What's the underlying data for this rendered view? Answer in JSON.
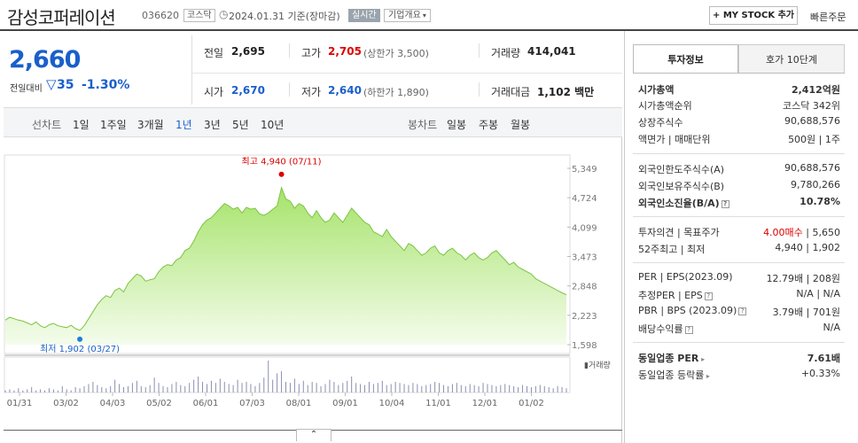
{
  "header": {
    "title": "감성코퍼레이션",
    "code": "036620",
    "market": "코스닥",
    "date": "2024.01.31  기준(장마감)",
    "realtime": "실시간",
    "overview": "기업개요",
    "mystock": "+ MY STOCK 추가",
    "quick_order": "빠른주문"
  },
  "price": {
    "current": "2,660",
    "change_label": "전일대비",
    "change_value": "35",
    "change_rate": "-1.30%"
  },
  "quote": {
    "prev_close_label": "전일",
    "prev_close": "2,695",
    "high_label": "고가",
    "high": "2,705",
    "upper_limit": "(상한가 3,500)",
    "volume_label": "거래량",
    "volume": "414,041",
    "open_label": "시가",
    "open": "2,670",
    "low_label": "저가",
    "low": "2,640",
    "lower_limit": "(하한가 1,890)",
    "amount_label": "거래대금",
    "amount": "1,102 백만"
  },
  "toolbar": {
    "line_chart": "선차트",
    "periods": [
      "1일",
      "1주일",
      "3개월",
      "1년",
      "3년",
      "5년",
      "10년"
    ],
    "selected_period": "1년",
    "candle_chart": "봉차트",
    "candle_periods": [
      "일봉",
      "주봉",
      "월봉"
    ]
  },
  "chart_data": {
    "type": "area",
    "title": "",
    "y_ticks": [
      "5,349",
      "4,724",
      "4,099",
      "3,473",
      "2,848",
      "2,223",
      "1,598"
    ],
    "ylim": [
      1598,
      5349
    ],
    "x_ticks": [
      "01/31",
      "03/02",
      "04/03",
      "05/02",
      "06/01",
      "07/03",
      "08/01",
      "09/01",
      "10/04",
      "11/01",
      "12/01",
      "01/02"
    ],
    "high_annotation": "최고 4,940 (07/11)",
    "low_annotation": "최저 1,902 (03/27)",
    "volume_label": "거래량",
    "values": [
      2120,
      2180,
      2150,
      2120,
      2100,
      2060,
      2020,
      2080,
      2000,
      1960,
      2020,
      2050,
      2000,
      1980,
      1960,
      2010,
      1940,
      1902,
      2000,
      2150,
      2300,
      2450,
      2560,
      2640,
      2600,
      2750,
      2800,
      2720,
      2900,
      3000,
      3100,
      3060,
      2950,
      2980,
      3000,
      3150,
      3250,
      3300,
      3280,
      3400,
      3450,
      3600,
      3650,
      3800,
      4000,
      4150,
      4250,
      4300,
      4400,
      4500,
      4600,
      4550,
      4480,
      4520,
      4400,
      4520,
      4480,
      4500,
      4380,
      4350,
      4400,
      4480,
      4550,
      4940,
      4700,
      4650,
      4500,
      4600,
      4550,
      4400,
      4300,
      4450,
      4300,
      4200,
      4250,
      4400,
      4300,
      4200,
      4350,
      4500,
      4400,
      4300,
      4200,
      4150,
      4000,
      3950,
      3900,
      4050,
      3900,
      3800,
      3700,
      3600,
      3750,
      3700,
      3600,
      3500,
      3550,
      3650,
      3700,
      3550,
      3500,
      3600,
      3650,
      3550,
      3500,
      3400,
      3500,
      3550,
      3450,
      3400,
      3450,
      3550,
      3600,
      3500,
      3400,
      3300,
      3350,
      3250,
      3200,
      3150,
      3100,
      3000,
      2950,
      2900,
      2850,
      2800,
      2750,
      2700,
      2660
    ],
    "volumes": [
      2,
      3,
      2,
      4,
      2,
      3,
      5,
      2,
      3,
      2,
      4,
      3,
      2,
      6,
      3,
      2,
      5,
      4,
      6,
      8,
      10,
      7,
      5,
      4,
      6,
      12,
      8,
      5,
      6,
      9,
      11,
      6,
      5,
      7,
      14,
      9,
      6,
      5,
      8,
      10,
      7,
      6,
      9,
      12,
      15,
      10,
      8,
      11,
      9,
      13,
      10,
      8,
      7,
      12,
      9,
      10,
      8,
      6,
      9,
      14,
      30,
      12,
      18,
      20,
      10,
      9,
      13,
      8,
      11,
      7,
      10,
      9,
      6,
      8,
      12,
      10,
      7,
      9,
      11,
      15,
      9,
      8,
      7,
      10,
      8,
      9,
      11,
      7,
      8,
      10,
      9,
      8,
      7,
      9,
      8,
      6,
      7,
      8,
      10,
      9,
      7,
      6,
      8,
      9,
      7,
      6,
      8,
      7,
      6,
      9,
      8,
      7,
      6,
      7,
      8,
      7,
      6,
      5,
      7,
      6,
      5,
      6,
      7,
      6,
      5,
      4,
      6,
      5,
      4
    ]
  },
  "tabs": {
    "info": "투자정보",
    "hoga": "호가 10단계"
  },
  "invest_info": {
    "market_cap_label": "시가총액",
    "market_cap": "2,412억원",
    "market_cap_rank_label": "시가총액순위",
    "market_cap_rank": "코스닥 342위",
    "shares_label": "상장주식수",
    "shares": "90,688,576",
    "par_label": "액면가 | 매매단위",
    "par": "500원 | 1주",
    "foreign_limit_label": "외국인한도주식수(A)",
    "foreign_limit": "90,688,576",
    "foreign_hold_label": "외국인보유주식수(B)",
    "foreign_hold": "9,780,266",
    "foreign_rate_label": "외국인소진율(B/A)",
    "foreign_rate": "10.78%",
    "opinion_label": "투자의견 | 목표주가",
    "opinion": "4.00매수",
    "target": "5,650",
    "week52_label": "52주최고 | 최저",
    "week52": "4,940 | 1,902",
    "per_label": "PER | EPS(2023.09)",
    "per": "12.79배 | 208원",
    "est_per_label": "추정PER | EPS",
    "est_per": "N/A | N/A",
    "pbr_label": "PBR | BPS (2023.09)",
    "pbr": "3.79배 | 701원",
    "dividend_label": "배당수익률",
    "dividend": "N/A",
    "sector_per_label": "동일업종 PER",
    "sector_per": "7.61배",
    "sector_change_label": "동일업종 등락률",
    "sector_change": "+0.33%"
  },
  "colors": {
    "up": "#dd0000",
    "down": "#1a5fcb",
    "area": "#a6e36a"
  }
}
